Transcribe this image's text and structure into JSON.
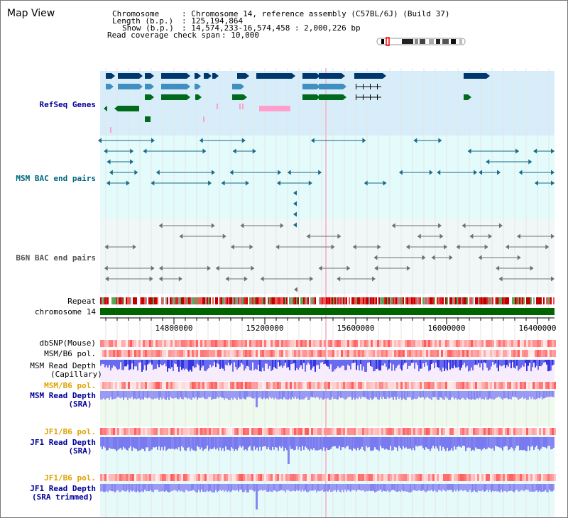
{
  "map_title": "Map View",
  "info": {
    "chromosome_label": "Chromosome",
    "chromosome_value": ": Chromosome 14, reference assembly (C57BL/6J) (Build 37)",
    "length_label": "Length (b.p.)",
    "length_value": ": 125,194,864",
    "show_label": "Show (b.p.)",
    "show_value": ": 14,574,233-16,574,458 : 2,000,226 bp",
    "coverage_label": "Read coverage check span",
    "coverage_value": ": 10,000"
  },
  "tracks": {
    "refseq": "RefSeq Genes",
    "msm_bac": "MSM BAC end pairs",
    "b6n_bac": "B6N BAC end pairs",
    "repeat": "Repeat",
    "chromosome": "chromosome 14",
    "dbsnp": "dbSNP(Mouse)",
    "msm_b6_pol_1": "MSM/B6 pol.",
    "msm_read_depth_cap_1": "MSM Read Depth",
    "msm_read_depth_cap_2": "(Capillary)",
    "msm_b6_pol_2": "MSM/B6 pol.",
    "msm_read_depth_sra_1": "MSM Read Depth",
    "msm_read_depth_sra_2": "(SRA)",
    "jf1_b6_pol_1": "JF1/B6 pol.",
    "jf1_read_depth_sra_1": "JF1 Read Depth",
    "jf1_read_depth_sra_2": "(SRA)",
    "jf1_b6_pol_2": "JF1/B6 pol.",
    "jf1_read_depth_trim_1": "JF1 Read Depth",
    "jf1_read_depth_trim_2": "(SRA trimmed)"
  },
  "axis": {
    "ticks": [
      "14800000",
      "15200000",
      "15600000",
      "16000000",
      "16400000"
    ]
  },
  "colors": {
    "refseq_bg": "#d7eefa",
    "bac_bg": "#e3fbfb",
    "b6n_bg": "#f1f7f7",
    "dark_gene": "#00386e",
    "mid_gene": "#3f8fc0",
    "green_gene": "#006b1c",
    "pink": "#ff9fcc",
    "msm_bac": "#1a6a8a",
    "b6n_bac": "#707070",
    "chrom": "#006400",
    "pol": "#ff6666",
    "depth_blue": "#3535e0",
    "depth_light": "#8686f0",
    "label_blue": "#000099",
    "label_teal": "#006680",
    "label_orange": "#e0a000"
  }
}
